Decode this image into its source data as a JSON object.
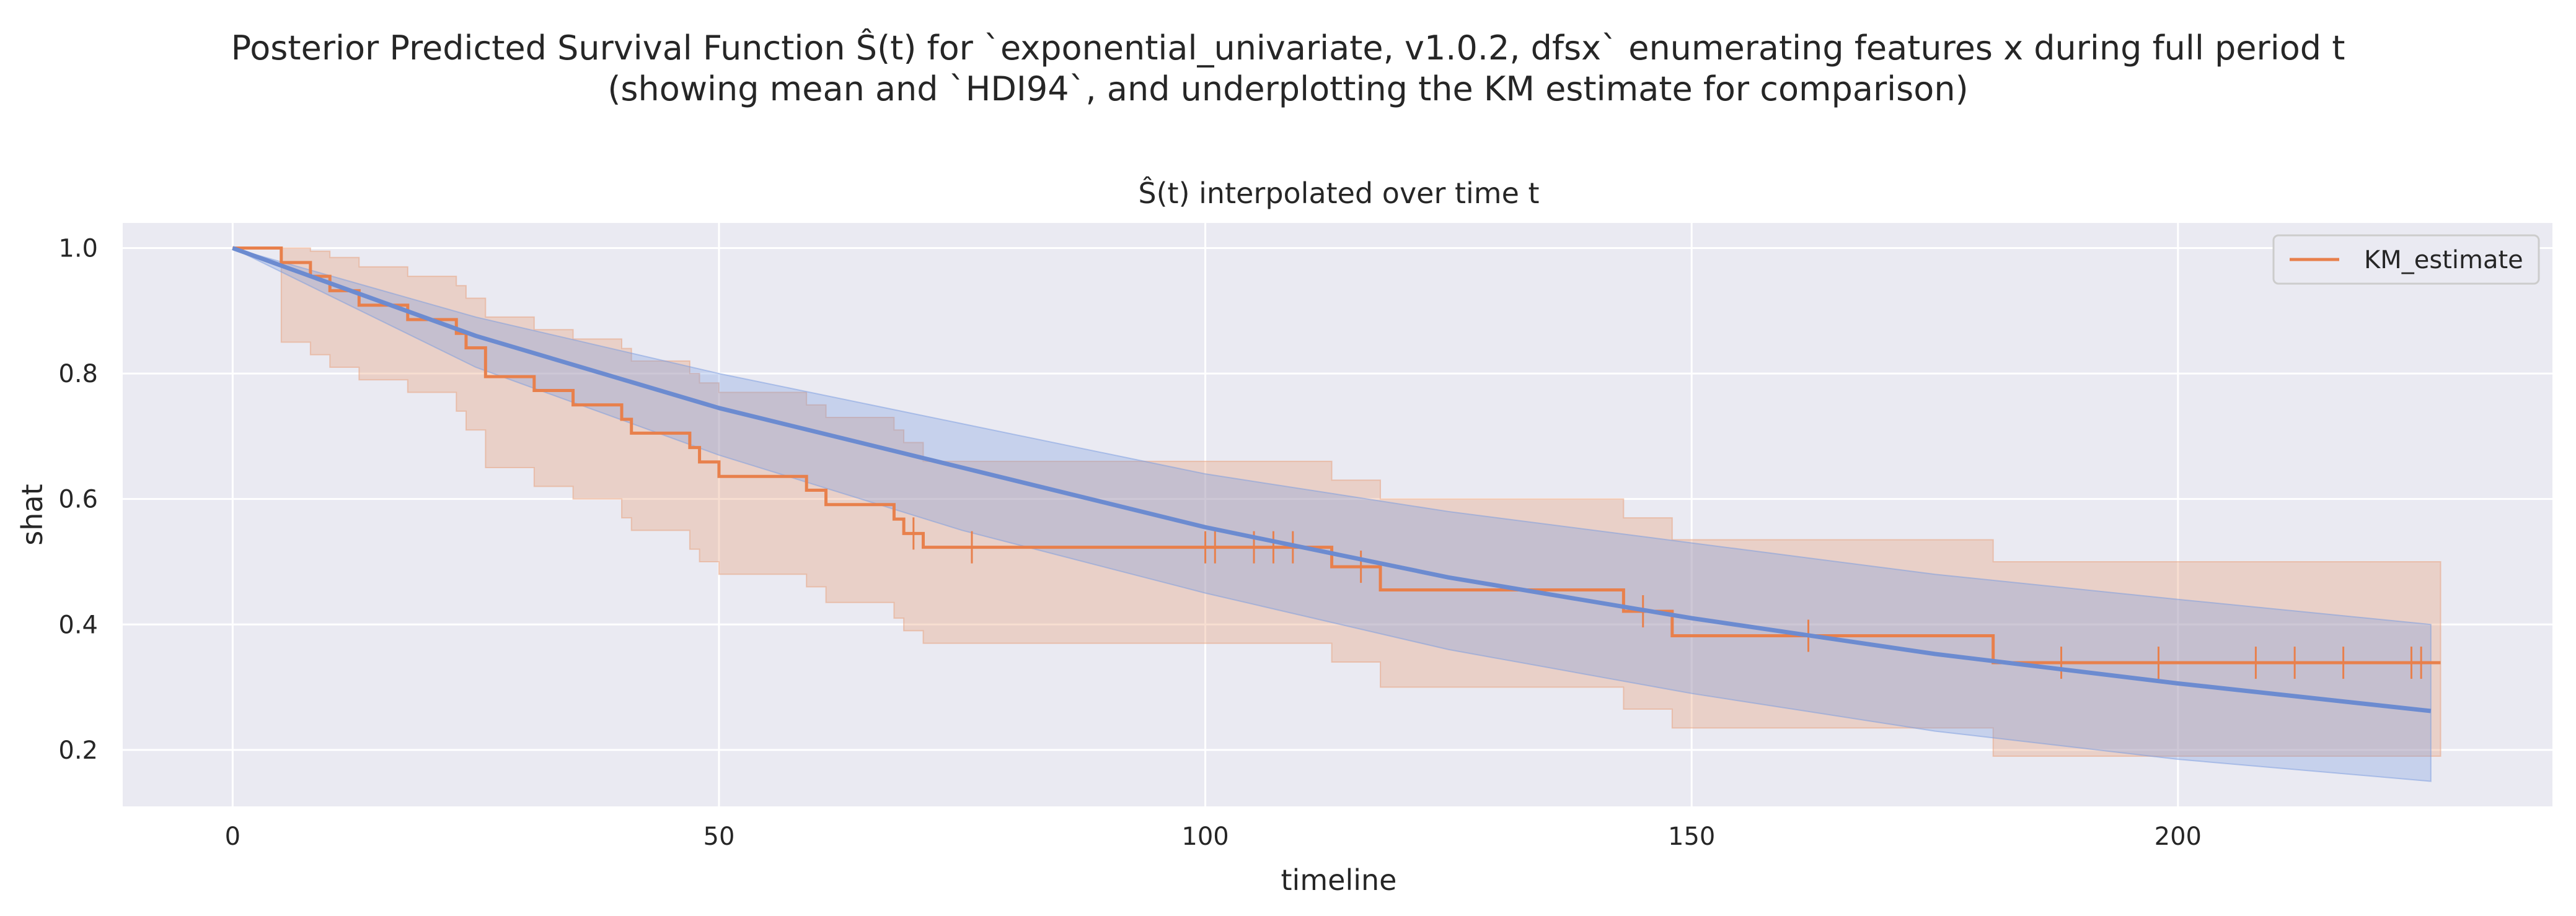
{
  "chart_data": {
    "type": "line",
    "title_line1": "Posterior Predicted Survival Function Ŝ(t) for `exponential_univariate, v1.0.2, dfsx` enumerating features x during full period t",
    "title_line2": "(showing mean and `HDI94`, and underplotting the KM estimate for comparison)",
    "subtitle": "Ŝ(t) interpolated over time t",
    "xlabel": "timeline",
    "ylabel": "shat",
    "xlim": [
      -11.3,
      238.5
    ],
    "ylim": [
      0.11,
      1.04
    ],
    "xticks": [
      0,
      50,
      100,
      150,
      200
    ],
    "yticks": [
      0.2,
      0.4,
      0.6,
      0.8,
      1.0
    ],
    "ytick_labels": [
      "0.2",
      "0.4",
      "0.6",
      "0.8",
      "1.0"
    ],
    "grid": true,
    "legend": {
      "position": "top-right",
      "entries": [
        "KM_estimate"
      ]
    },
    "colors": {
      "km": "#e8804c",
      "model": "#6c8bd0",
      "km_band": "#e8a07c",
      "model_band": "#7a9ce0",
      "bg": "#eaeaf2"
    },
    "km_estimate": {
      "steps": [
        [
          0,
          1.0
        ],
        [
          5,
          0.977
        ],
        [
          8,
          0.955
        ],
        [
          10,
          0.932
        ],
        [
          13,
          0.909
        ],
        [
          18,
          0.886
        ],
        [
          23,
          0.864
        ],
        [
          24,
          0.841
        ],
        [
          26,
          0.795
        ],
        [
          31,
          0.773
        ],
        [
          35,
          0.75
        ],
        [
          40,
          0.727
        ],
        [
          41,
          0.705
        ],
        [
          47,
          0.682
        ],
        [
          48,
          0.659
        ],
        [
          50,
          0.636
        ],
        [
          59,
          0.614
        ],
        [
          61,
          0.591
        ],
        [
          68,
          0.568
        ],
        [
          69,
          0.545
        ],
        [
          71,
          0.523
        ],
        [
          113,
          0.492
        ],
        [
          118,
          0.455
        ],
        [
          143,
          0.421
        ],
        [
          148,
          0.382
        ],
        [
          181,
          0.339
        ],
        [
          227,
          0.339
        ]
      ],
      "censored": [
        70,
        76,
        100,
        101,
        105,
        107,
        109,
        116,
        145,
        162,
        188,
        198,
        208,
        212,
        217,
        224,
        225
      ],
      "ci_lower": [
        [
          0,
          1.0
        ],
        [
          5,
          0.85
        ],
        [
          8,
          0.83
        ],
        [
          10,
          0.81
        ],
        [
          13,
          0.79
        ],
        [
          18,
          0.77
        ],
        [
          23,
          0.74
        ],
        [
          24,
          0.71
        ],
        [
          26,
          0.65
        ],
        [
          31,
          0.62
        ],
        [
          35,
          0.6
        ],
        [
          40,
          0.57
        ],
        [
          41,
          0.55
        ],
        [
          47,
          0.52
        ],
        [
          48,
          0.5
        ],
        [
          50,
          0.48
        ],
        [
          59,
          0.46
        ],
        [
          61,
          0.435
        ],
        [
          68,
          0.41
        ],
        [
          69,
          0.39
        ],
        [
          71,
          0.37
        ],
        [
          113,
          0.34
        ],
        [
          118,
          0.3
        ],
        [
          143,
          0.265
        ],
        [
          148,
          0.235
        ],
        [
          181,
          0.19
        ],
        [
          227,
          0.19
        ]
      ],
      "ci_upper": [
        [
          0,
          1.0
        ],
        [
          5,
          1.0
        ],
        [
          8,
          0.995
        ],
        [
          10,
          0.985
        ],
        [
          13,
          0.97
        ],
        [
          18,
          0.955
        ],
        [
          23,
          0.94
        ],
        [
          24,
          0.92
        ],
        [
          26,
          0.89
        ],
        [
          31,
          0.87
        ],
        [
          35,
          0.855
        ],
        [
          40,
          0.84
        ],
        [
          41,
          0.82
        ],
        [
          47,
          0.8
        ],
        [
          48,
          0.785
        ],
        [
          50,
          0.77
        ],
        [
          59,
          0.75
        ],
        [
          61,
          0.73
        ],
        [
          68,
          0.71
        ],
        [
          69,
          0.69
        ],
        [
          71,
          0.66
        ],
        [
          113,
          0.63
        ],
        [
          118,
          0.6
        ],
        [
          143,
          0.57
        ],
        [
          148,
          0.535
        ],
        [
          181,
          0.5
        ],
        [
          227,
          0.5
        ]
      ]
    },
    "model": {
      "mean": [
        [
          0,
          1.0
        ],
        [
          25,
          0.86
        ],
        [
          50,
          0.745
        ],
        [
          75,
          0.65
        ],
        [
          100,
          0.555
        ],
        [
          125,
          0.475
        ],
        [
          150,
          0.41
        ],
        [
          175,
          0.353
        ],
        [
          200,
          0.306
        ],
        [
          226,
          0.262
        ]
      ],
      "hdi_upper": [
        [
          0,
          1.0
        ],
        [
          25,
          0.89
        ],
        [
          50,
          0.8
        ],
        [
          75,
          0.72
        ],
        [
          100,
          0.64
        ],
        [
          125,
          0.58
        ],
        [
          150,
          0.53
        ],
        [
          175,
          0.48
        ],
        [
          200,
          0.44
        ],
        [
          226,
          0.4
        ]
      ],
      "hdi_lower": [
        [
          0,
          1.0
        ],
        [
          25,
          0.81
        ],
        [
          50,
          0.67
        ],
        [
          75,
          0.55
        ],
        [
          100,
          0.45
        ],
        [
          125,
          0.36
        ],
        [
          150,
          0.29
        ],
        [
          175,
          0.23
        ],
        [
          200,
          0.185
        ],
        [
          226,
          0.15
        ]
      ]
    }
  }
}
